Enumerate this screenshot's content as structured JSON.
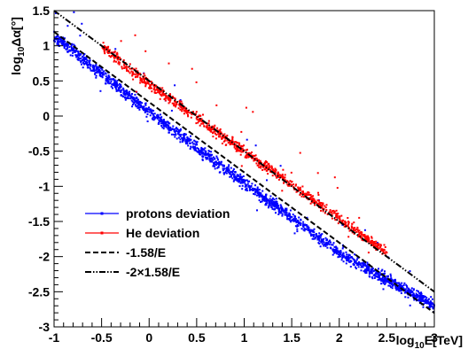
{
  "chart_data": {
    "type": "scatter",
    "x_axis": {
      "label": "log10E[TeV]",
      "label_parts": {
        "prefix": "log",
        "subscript": "10",
        "suffix": "E[TeV]"
      },
      "range": [
        -1,
        3
      ],
      "ticks": [
        -1,
        -0.5,
        0,
        0.5,
        1,
        1.5,
        2,
        2.5,
        3
      ],
      "tick_labels": [
        "-1",
        "-0.5",
        "0",
        "0.5",
        "1",
        "1.5",
        "2",
        "2.5",
        "3"
      ]
    },
    "y_axis": {
      "label": "log10Δα[°]",
      "label_parts": {
        "prefix": "log",
        "subscript": "10",
        "suffix": "Δα[°]"
      },
      "range": [
        -3,
        1.5
      ],
      "ticks": [
        -3,
        -2.5,
        -2,
        -1.5,
        -1,
        -0.5,
        0,
        0.5,
        1,
        1.5
      ],
      "tick_labels": [
        "-3",
        "-2.5",
        "-2",
        "-1.5",
        "-1",
        "-0.5",
        "0",
        "0.5",
        "1",
        "1.5"
      ]
    },
    "grid": false,
    "legend": {
      "placement": "bottom-left",
      "entries": [
        {
          "label": "protons deviation",
          "style": "line-marker",
          "color": "#0000ff"
        },
        {
          "label": "He deviation",
          "style": "line-marker",
          "color": "#ff0000"
        },
        {
          "label": "-1.58/E",
          "style": "dashed",
          "color": "#000000"
        },
        {
          "label": "-2×1.58/E",
          "style": "dash-dot-dot",
          "color": "#000000"
        }
      ]
    },
    "series": [
      {
        "name": "protons deviation",
        "kind": "scatter-band",
        "color": "#0000ff",
        "x_range": [
          -1,
          3
        ],
        "band_center": [
          [
            -1,
            1.15
          ],
          [
            0,
            0.05
          ],
          [
            1,
            -0.95
          ],
          [
            2,
            -1.95
          ],
          [
            3,
            -2.7
          ]
        ],
        "band_halfwidth": 0.09,
        "approx_point_count": 1800
      },
      {
        "name": "He deviation",
        "kind": "scatter-band",
        "color": "#ff0000",
        "x_range": [
          -0.5,
          2.5
        ],
        "band_center": [
          [
            -0.5,
            1.0
          ],
          [
            0,
            0.45
          ],
          [
            1,
            -0.5
          ],
          [
            2,
            -1.45
          ],
          [
            2.5,
            -1.95
          ]
        ],
        "band_halfwidth": 0.08,
        "approx_point_count": 1000
      },
      {
        "name": "-1.58/E",
        "kind": "line",
        "style": "dashed",
        "color": "#000000",
        "points": [
          [
            -1,
            1.198
          ],
          [
            3,
            -2.802
          ]
        ]
      },
      {
        "name": "-2×1.58/E",
        "kind": "line",
        "style": "dash-dot-dot",
        "color": "#000000",
        "points": [
          [
            -1,
            1.5
          ],
          [
            3,
            -2.5
          ]
        ]
      }
    ]
  }
}
